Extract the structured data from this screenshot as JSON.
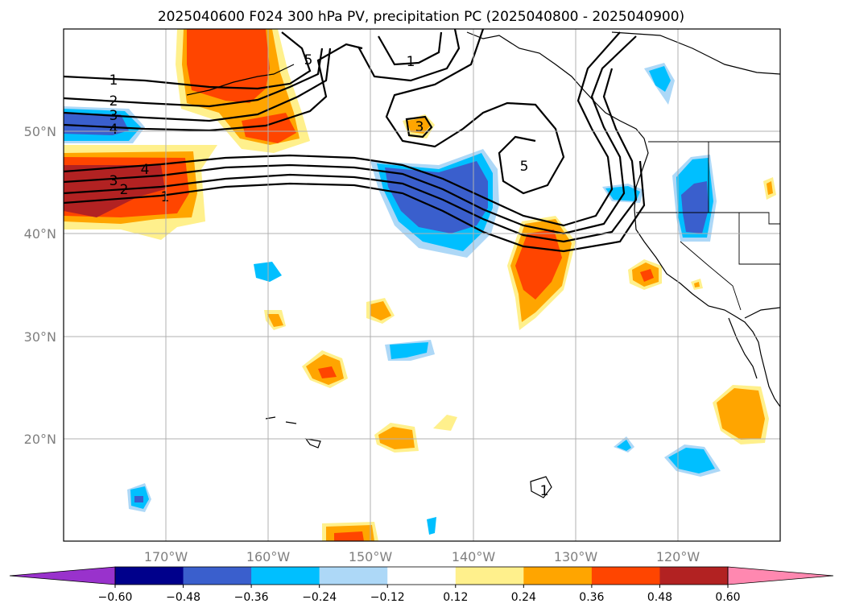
{
  "title": "2025040600 F024 300 hPa PV, precipitation PC (2025040800 - 2025040900)",
  "map": {
    "lon_ticks": [
      "170°W",
      "160°W",
      "150°W",
      "140°W",
      "130°W",
      "120°W"
    ],
    "lat_ticks": [
      "50°N",
      "40°N",
      "30°N",
      "20°N"
    ],
    "gridlines": true
  },
  "pv_contour_labels": [
    "1",
    "2",
    "3",
    "4",
    "5"
  ],
  "colorbar": {
    "ticks": [
      "−0.60",
      "−0.48",
      "−0.36",
      "−0.24",
      "−0.12",
      "0.12",
      "0.24",
      "0.36",
      "0.48",
      "0.60"
    ],
    "colors": [
      "#9932cc",
      "#00008b",
      "#3a5fcd",
      "#00bfff",
      "#add8f7",
      "#ffffff",
      "#fff08c",
      "#ffa500",
      "#ff4500",
      "#b22222",
      "#ff88b0"
    ],
    "extend": "both"
  },
  "chart_data": {
    "type": "map",
    "title": "2025040600 F024 300 hPa PV, precipitation PC (2025040800 - 2025040900)",
    "extent": {
      "lon": [
        -180,
        -110
      ],
      "lat": [
        10,
        60
      ]
    },
    "pv_contour_levels": [
      1,
      2,
      3,
      4,
      5
    ],
    "precip_pc_levels": [
      -0.6,
      -0.48,
      -0.36,
      -0.24,
      -0.12,
      0.12,
      0.24,
      0.36,
      0.48,
      0.6
    ]
  }
}
